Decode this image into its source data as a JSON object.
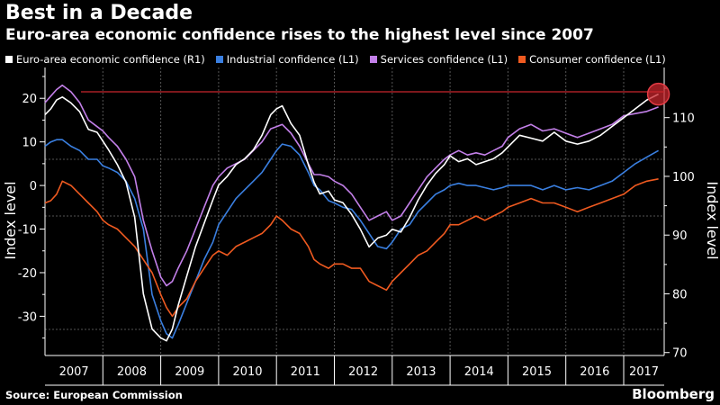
{
  "header": {
    "title": "Best in a Decade",
    "subtitle": "Euro-area economic confidence rises to the highest level since 2007"
  },
  "footer": {
    "source": "Source: European Commission",
    "brand": "Bloomberg"
  },
  "chart_data": {
    "type": "line",
    "x_categories": [
      "2007",
      "2008",
      "2009",
      "2010",
      "2011",
      "2012",
      "2013",
      "2014",
      "2015",
      "2016",
      "2017"
    ],
    "left_axis": {
      "label": "Index level",
      "ticks": [
        -30,
        -20,
        -10,
        0,
        10,
        20
      ],
      "range": [
        -39,
        25
      ]
    },
    "right_axis": {
      "label": "Index level",
      "ticks": [
        70,
        80,
        90,
        100,
        110
      ],
      "range": [
        69.5,
        117
      ]
    },
    "series": [
      {
        "name": "Euro-area economic confidence (R1)",
        "axis": "right",
        "color": "#ffffff",
        "x": [
          2007.0,
          2007.1,
          2007.2,
          2007.3,
          2007.45,
          2007.6,
          2007.75,
          2007.9,
          2008.0,
          2008.1,
          2008.25,
          2008.4,
          2008.55,
          2008.7,
          2008.85,
          2009.0,
          2009.1,
          2009.2,
          2009.3,
          2009.45,
          2009.6,
          2009.75,
          2009.9,
          2010.0,
          2010.15,
          2010.3,
          2010.45,
          2010.6,
          2010.75,
          2010.9,
          2011.0,
          2011.1,
          2011.25,
          2011.4,
          2011.55,
          2011.65,
          2011.75,
          2011.9,
          2012.0,
          2012.15,
          2012.3,
          2012.45,
          2012.6,
          2012.75,
          2012.9,
          2013.0,
          2013.15,
          2013.3,
          2013.45,
          2013.6,
          2013.75,
          2013.9,
          2014.0,
          2014.15,
          2014.3,
          2014.45,
          2014.6,
          2014.75,
          2014.9,
          2015.0,
          2015.2,
          2015.4,
          2015.6,
          2015.8,
          2016.0,
          2016.2,
          2016.4,
          2016.6,
          2016.8,
          2017.0,
          2017.2,
          2017.4,
          2017.6
        ],
        "y": [
          110.5,
          111.5,
          113,
          113.5,
          112.5,
          111,
          108,
          107.5,
          106,
          104.5,
          102,
          99,
          93,
          80,
          74,
          72.5,
          72,
          74,
          78,
          83,
          88,
          92,
          96,
          98.5,
          100,
          102,
          103,
          104.5,
          107,
          110.5,
          111.5,
          112,
          109,
          107,
          102,
          99,
          97,
          97.5,
          96,
          95.5,
          93.5,
          91,
          88,
          89.5,
          90,
          91,
          90.5,
          93,
          96,
          98.5,
          100.5,
          102,
          103.5,
          102.5,
          103,
          102,
          102.5,
          103,
          104,
          105,
          107,
          106.5,
          106,
          107.5,
          106,
          105.5,
          106,
          107,
          108.5,
          110,
          111.5,
          113,
          114
        ]
      },
      {
        "name": "Industrial confidence (L1)",
        "axis": "left",
        "color": "#3a7fe0",
        "x": [
          2007.0,
          2007.1,
          2007.2,
          2007.3,
          2007.45,
          2007.6,
          2007.75,
          2007.9,
          2008.0,
          2008.1,
          2008.25,
          2008.4,
          2008.55,
          2008.7,
          2008.85,
          2009.0,
          2009.1,
          2009.2,
          2009.3,
          2009.45,
          2009.6,
          2009.75,
          2009.9,
          2010.0,
          2010.15,
          2010.3,
          2010.45,
          2010.6,
          2010.75,
          2010.9,
          2011.0,
          2011.1,
          2011.25,
          2011.4,
          2011.55,
          2011.65,
          2011.75,
          2011.9,
          2012.0,
          2012.15,
          2012.3,
          2012.45,
          2012.6,
          2012.75,
          2012.9,
          2013.0,
          2013.15,
          2013.3,
          2013.45,
          2013.6,
          2013.75,
          2013.9,
          2014.0,
          2014.15,
          2014.3,
          2014.45,
          2014.6,
          2014.75,
          2014.9,
          2015.0,
          2015.2,
          2015.4,
          2015.6,
          2015.8,
          2016.0,
          2016.2,
          2016.4,
          2016.6,
          2016.8,
          2017.0,
          2017.2,
          2017.4,
          2017.6
        ],
        "y": [
          9,
          10,
          10.5,
          10.5,
          9,
          8,
          6,
          6,
          4.5,
          4,
          3,
          1,
          -3,
          -10,
          -25,
          -31,
          -34,
          -35,
          -32,
          -27,
          -22,
          -17,
          -13,
          -9,
          -6,
          -3,
          -1,
          1,
          3,
          6,
          8,
          9.5,
          9,
          7,
          3,
          0,
          -1,
          -3.5,
          -4,
          -5,
          -5.5,
          -8,
          -11,
          -14,
          -14.5,
          -13,
          -10,
          -9,
          -6,
          -4,
          -2,
          -1,
          0,
          0.5,
          0,
          0,
          -0.5,
          -1,
          -0.5,
          0,
          0,
          0,
          -1,
          0,
          -1,
          -0.5,
          -1,
          0,
          1,
          3,
          5,
          6.5,
          8
        ]
      },
      {
        "name": "Services confidence (L1)",
        "axis": "left",
        "color": "#c27fe8",
        "x": [
          2007.0,
          2007.1,
          2007.2,
          2007.3,
          2007.45,
          2007.6,
          2007.75,
          2007.9,
          2008.0,
          2008.1,
          2008.25,
          2008.4,
          2008.55,
          2008.7,
          2008.85,
          2009.0,
          2009.1,
          2009.2,
          2009.3,
          2009.45,
          2009.6,
          2009.75,
          2009.9,
          2010.0,
          2010.15,
          2010.3,
          2010.45,
          2010.6,
          2010.75,
          2010.9,
          2011.0,
          2011.1,
          2011.25,
          2011.4,
          2011.55,
          2011.65,
          2011.75,
          2011.9,
          2012.0,
          2012.15,
          2012.3,
          2012.45,
          2012.6,
          2012.75,
          2012.9,
          2013.0,
          2013.15,
          2013.3,
          2013.45,
          2013.6,
          2013.75,
          2013.9,
          2014.0,
          2014.15,
          2014.3,
          2014.45,
          2014.6,
          2014.75,
          2014.9,
          2015.0,
          2015.2,
          2015.4,
          2015.6,
          2015.8,
          2016.0,
          2016.2,
          2016.4,
          2016.6,
          2016.8,
          2017.0,
          2017.2,
          2017.4,
          2017.6
        ],
        "y": [
          19,
          20.5,
          22,
          23,
          21.5,
          19,
          15,
          13.5,
          12.5,
          11,
          9,
          6,
          2,
          -8,
          -15,
          -21,
          -23,
          -22,
          -19,
          -15,
          -10,
          -5,
          0,
          2,
          4,
          5,
          6,
          8,
          10,
          13,
          13.5,
          14,
          12,
          9,
          5,
          2.5,
          2.5,
          2,
          1,
          0,
          -2,
          -5,
          -8,
          -7,
          -6,
          -8,
          -7,
          -4,
          -1,
          2,
          4,
          6,
          7,
          8,
          7,
          7.5,
          7,
          8,
          9,
          11,
          13,
          14,
          12.5,
          13,
          12,
          11,
          12,
          13,
          14,
          16,
          16.5,
          17,
          18
        ]
      },
      {
        "name": "Consumer confidence (L1)",
        "axis": "left",
        "color": "#ef5a20",
        "x": [
          2007.0,
          2007.1,
          2007.2,
          2007.3,
          2007.45,
          2007.6,
          2007.75,
          2007.9,
          2008.0,
          2008.1,
          2008.25,
          2008.4,
          2008.55,
          2008.7,
          2008.85,
          2009.0,
          2009.1,
          2009.2,
          2009.3,
          2009.45,
          2009.6,
          2009.75,
          2009.9,
          2010.0,
          2010.15,
          2010.3,
          2010.45,
          2010.6,
          2010.75,
          2010.9,
          2011.0,
          2011.1,
          2011.25,
          2011.4,
          2011.55,
          2011.65,
          2011.75,
          2011.9,
          2012.0,
          2012.15,
          2012.3,
          2012.45,
          2012.6,
          2012.75,
          2012.9,
          2013.0,
          2013.15,
          2013.3,
          2013.45,
          2013.6,
          2013.75,
          2013.9,
          2014.0,
          2014.15,
          2014.3,
          2014.45,
          2014.6,
          2014.75,
          2014.9,
          2015.0,
          2015.2,
          2015.4,
          2015.6,
          2015.8,
          2016.0,
          2016.2,
          2016.4,
          2016.6,
          2016.8,
          2017.0,
          2017.2,
          2017.4,
          2017.6
        ],
        "y": [
          -4,
          -3.5,
          -2,
          1,
          0,
          -2,
          -4,
          -6,
          -8,
          -9,
          -10,
          -12,
          -14,
          -17,
          -20,
          -25,
          -28,
          -30,
          -28,
          -26,
          -22,
          -19,
          -16,
          -15,
          -16,
          -14,
          -13,
          -12,
          -11,
          -9,
          -7,
          -8,
          -10,
          -11,
          -14,
          -17,
          -18,
          -19,
          -18,
          -18,
          -19,
          -19,
          -22,
          -23,
          -24,
          -22,
          -20,
          -18,
          -16,
          -15,
          -13,
          -11,
          -9,
          -9,
          -8,
          -7,
          -8,
          -7,
          -6,
          -5,
          -4,
          -3,
          -4,
          -4,
          -5,
          -6,
          -5,
          -4,
          -3,
          -2,
          0,
          1,
          1.5
        ]
      }
    ],
    "annotations": {
      "reference_line_right": 114.4,
      "highlight": {
        "x": 2017.6,
        "series": "Euro-area economic confidence (R1)"
      }
    },
    "grid": {
      "dashed_horizontal": true,
      "vertical_year_dividers": true
    }
  },
  "colors": {
    "background": "#000000",
    "reference_line": "#c8252c",
    "grid": "#555555"
  }
}
